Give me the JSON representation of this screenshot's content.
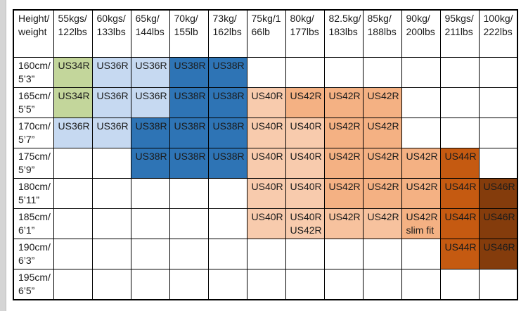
{
  "page": {
    "background": "#ffffff",
    "left_strip_color": "#d5d5d5"
  },
  "palette": {
    "green": "#c3d69b",
    "lightblue": "#c6d9f1",
    "blue": "#2e74b5",
    "peach": "#f8cbad",
    "orange": "#f4b183",
    "orange_light": "#f7c29e",
    "darkorange": "#c55a11",
    "brown": "#843c0c",
    "none": "transparent"
  },
  "table": {
    "header": [
      "Height/\nweight",
      "55kgs/\n122lbs",
      "60kgs/\n133lbs",
      "65kg/\n144lbs",
      "70kg/\n155lb",
      "73kg/\n162lbs",
      "75kg/1\n66lb",
      "80kg/\n177lbs",
      "82.5kg/\n183lbs",
      "85kg/\n188lbs",
      "90kg/\n200lbs",
      "95kgs/\n211lbs",
      "100kg/\n222lbs"
    ],
    "rows": [
      {
        "label": "160cm/\n5’3”",
        "cells": [
          {
            "text": "US34R",
            "color": "green"
          },
          {
            "text": "US36R",
            "color": "lightblue"
          },
          {
            "text": "US36R",
            "color": "lightblue"
          },
          {
            "text": "US38R",
            "color": "blue"
          },
          {
            "text": "US38R",
            "color": "blue"
          },
          {
            "text": "",
            "color": "none"
          },
          {
            "text": "",
            "color": "none"
          },
          {
            "text": "",
            "color": "none"
          },
          {
            "text": "",
            "color": "none"
          },
          {
            "text": "",
            "color": "none"
          },
          {
            "text": "",
            "color": "none"
          },
          {
            "text": "",
            "color": "none"
          }
        ]
      },
      {
        "label": "165cm/\n5’5”",
        "cells": [
          {
            "text": "US34R",
            "color": "green"
          },
          {
            "text": "US36R",
            "color": "lightblue"
          },
          {
            "text": "US36R",
            "color": "lightblue"
          },
          {
            "text": "US38R",
            "color": "blue"
          },
          {
            "text": "US38R",
            "color": "blue"
          },
          {
            "text": "US40R",
            "color": "peach"
          },
          {
            "text": "US42R",
            "color": "orange"
          },
          {
            "text": "US42R",
            "color": "orange"
          },
          {
            "text": "US42R",
            "color": "orange"
          },
          {
            "text": "",
            "color": "none"
          },
          {
            "text": "",
            "color": "none"
          },
          {
            "text": "",
            "color": "none"
          }
        ]
      },
      {
        "label": "170cm/\n5’7”",
        "cells": [
          {
            "text": "US36R",
            "color": "lightblue"
          },
          {
            "text": "US36R",
            "color": "lightblue"
          },
          {
            "text": "US38R",
            "color": "blue"
          },
          {
            "text": "US38R",
            "color": "blue"
          },
          {
            "text": "US38R",
            "color": "blue"
          },
          {
            "text": "US40R",
            "color": "peach"
          },
          {
            "text": "US40R",
            "color": "peach"
          },
          {
            "text": "US42R",
            "color": "orange"
          },
          {
            "text": "US42R",
            "color": "orange"
          },
          {
            "text": "",
            "color": "none"
          },
          {
            "text": "",
            "color": "none"
          },
          {
            "text": "",
            "color": "none"
          }
        ]
      },
      {
        "label": "175cm/\n5’9”",
        "cells": [
          {
            "text": "",
            "color": "none"
          },
          {
            "text": "",
            "color": "none"
          },
          {
            "text": "US38R",
            "color": "blue"
          },
          {
            "text": "US38R",
            "color": "blue"
          },
          {
            "text": "US38R",
            "color": "blue"
          },
          {
            "text": "US40R",
            "color": "peach"
          },
          {
            "text": "US40R",
            "color": "peach"
          },
          {
            "text": "US42R",
            "color": "orange"
          },
          {
            "text": "US42R",
            "color": "orange"
          },
          {
            "text": "US42R",
            "color": "orange"
          },
          {
            "text": "US44R",
            "color": "darkorange"
          },
          {
            "text": "",
            "color": "none"
          }
        ]
      },
      {
        "label": "180cm/\n5’11”",
        "cells": [
          {
            "text": "",
            "color": "none"
          },
          {
            "text": "",
            "color": "none"
          },
          {
            "text": "",
            "color": "none"
          },
          {
            "text": "",
            "color": "none"
          },
          {
            "text": "",
            "color": "none"
          },
          {
            "text": "US40R",
            "color": "peach"
          },
          {
            "text": "US40R",
            "color": "peach"
          },
          {
            "text": "US42R",
            "color": "orange"
          },
          {
            "text": "US42R",
            "color": "orange"
          },
          {
            "text": "US42R",
            "color": "orange"
          },
          {
            "text": "US44R",
            "color": "darkorange"
          },
          {
            "text": "US46R",
            "color": "brown"
          }
        ]
      },
      {
        "label": "185cm/\n6’1”",
        "cells": [
          {
            "text": "",
            "color": "none"
          },
          {
            "text": "",
            "color": "none"
          },
          {
            "text": "",
            "color": "none"
          },
          {
            "text": "",
            "color": "none"
          },
          {
            "text": "",
            "color": "none"
          },
          {
            "text": "US40R",
            "color": "peach"
          },
          {
            "text": "US40R\nUS42R",
            "color": "peach"
          },
          {
            "text": "US42R",
            "color": "orange_light"
          },
          {
            "text": "US42R",
            "color": "orange_light"
          },
          {
            "text": "US42R\nslim fit",
            "color": "orange"
          },
          {
            "text": "US44R",
            "color": "darkorange"
          },
          {
            "text": "US46R",
            "color": "brown"
          }
        ]
      },
      {
        "label": "190cm/\n6’3”",
        "cells": [
          {
            "text": "",
            "color": "none"
          },
          {
            "text": "",
            "color": "none"
          },
          {
            "text": "",
            "color": "none"
          },
          {
            "text": "",
            "color": "none"
          },
          {
            "text": "",
            "color": "none"
          },
          {
            "text": "",
            "color": "none"
          },
          {
            "text": "",
            "color": "none"
          },
          {
            "text": "",
            "color": "none"
          },
          {
            "text": "",
            "color": "none"
          },
          {
            "text": "",
            "color": "none"
          },
          {
            "text": "US44R",
            "color": "darkorange"
          },
          {
            "text": "US46R",
            "color": "brown"
          }
        ]
      },
      {
        "label": "195cm/\n6’5”",
        "cells": [
          {
            "text": "",
            "color": "none"
          },
          {
            "text": "",
            "color": "none"
          },
          {
            "text": "",
            "color": "none"
          },
          {
            "text": "",
            "color": "none"
          },
          {
            "text": "",
            "color": "none"
          },
          {
            "text": "",
            "color": "none"
          },
          {
            "text": "",
            "color": "none"
          },
          {
            "text": "",
            "color": "none"
          },
          {
            "text": "",
            "color": "none"
          },
          {
            "text": "",
            "color": "none"
          },
          {
            "text": "",
            "color": "none"
          },
          {
            "text": "",
            "color": "none"
          }
        ]
      }
    ]
  }
}
